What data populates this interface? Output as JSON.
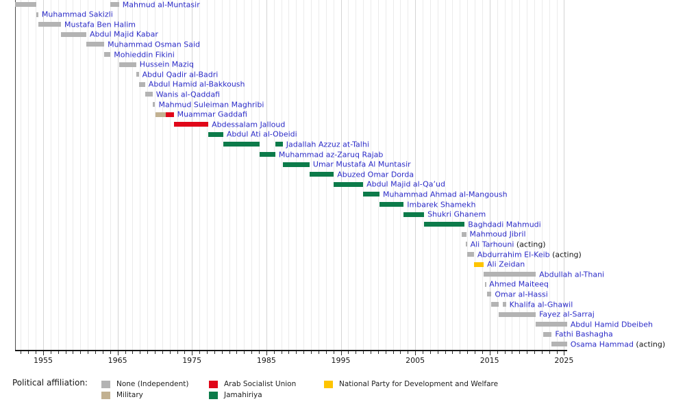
{
  "chart_data": {
    "type": "timeline",
    "description": "Timeline of prime ministers of Libya by political affiliation",
    "axis": {
      "start": 1951.2,
      "end": 2025.4,
      "tick_interval_years": 1,
      "labeled_ticks": [
        1955,
        1965,
        1975,
        1985,
        1995,
        2005,
        2015,
        2025
      ],
      "tick_labels": [
        "1955",
        "1965",
        "1975",
        "1985",
        "1995",
        "2005",
        "2015",
        "2025"
      ]
    },
    "affiliation_colors": {
      "none": "#b3b3b3",
      "military": "#c2b191",
      "arab_socialist_union": "#e00619",
      "jamahiriya": "#0c7b4a",
      "npdw": "#fec400"
    },
    "styles": {
      "link_color": "#2b2bc8",
      "text_color": "#141414",
      "grid_minor": "#ebebeb",
      "grid_major": "#d4d4d4",
      "axis_color": "#151515",
      "left_border_color": "#4a4a4a"
    },
    "people": [
      {
        "name": "Mahmud al-Muntasir",
        "suffix": "",
        "terms": [
          {
            "start": 1951.2,
            "end": 1954.1,
            "affiliation": "none"
          },
          {
            "start": 1964.05,
            "end": 1965.2,
            "affiliation": "none"
          }
        ]
      },
      {
        "name": "Muhammad Sakizli",
        "suffix": "",
        "terms": [
          {
            "start": 1954.1,
            "end": 1954.35,
            "affiliation": "none"
          }
        ]
      },
      {
        "name": "Mustafa Ben Halim",
        "suffix": "",
        "terms": [
          {
            "start": 1954.35,
            "end": 1957.4,
            "affiliation": "none"
          }
        ]
      },
      {
        "name": "Abdul Majid Kabar",
        "suffix": "",
        "terms": [
          {
            "start": 1957.4,
            "end": 1960.8,
            "affiliation": "none"
          }
        ]
      },
      {
        "name": "Muhammad Osman Said",
        "suffix": "",
        "terms": [
          {
            "start": 1960.8,
            "end": 1963.2,
            "affiliation": "none"
          }
        ]
      },
      {
        "name": "Mohieddin Fikini",
        "suffix": "",
        "terms": [
          {
            "start": 1963.2,
            "end": 1964.05,
            "affiliation": "none"
          }
        ]
      },
      {
        "name": "Hussein Maziq",
        "suffix": "",
        "terms": [
          {
            "start": 1965.2,
            "end": 1967.5,
            "affiliation": "none"
          }
        ]
      },
      {
        "name": "Abdul Qadir al-Badri",
        "suffix": "",
        "terms": [
          {
            "start": 1967.5,
            "end": 1967.85,
            "affiliation": "none"
          }
        ]
      },
      {
        "name": "Abdul Hamid al-Bakkoush",
        "suffix": "",
        "terms": [
          {
            "start": 1967.85,
            "end": 1968.7,
            "affiliation": "none"
          }
        ]
      },
      {
        "name": "Wanis al-Qaddafi",
        "suffix": "",
        "terms": [
          {
            "start": 1968.7,
            "end": 1969.7,
            "affiliation": "none"
          }
        ]
      },
      {
        "name": "Mahmud Suleiman Maghribi",
        "suffix": "",
        "terms": [
          {
            "start": 1969.7,
            "end": 1970.05,
            "affiliation": "none"
          }
        ]
      },
      {
        "name": "Muammar Gaddafi",
        "suffix": "",
        "terms": [
          {
            "start": 1970.05,
            "end": 1971.45,
            "affiliation": "military"
          },
          {
            "start": 1971.45,
            "end": 1972.55,
            "affiliation": "arab_socialist_union"
          }
        ]
      },
      {
        "name": "Abdessalam Jalloud",
        "suffix": "",
        "terms": [
          {
            "start": 1972.55,
            "end": 1977.2,
            "affiliation": "arab_socialist_union"
          }
        ]
      },
      {
        "name": "Abdul Ati al-Obeidi",
        "suffix": "",
        "terms": [
          {
            "start": 1977.2,
            "end": 1979.2,
            "affiliation": "jamahiriya"
          }
        ]
      },
      {
        "name": "Jadallah Azzuz at-Talhi",
        "suffix": "",
        "terms": [
          {
            "start": 1979.2,
            "end": 1984.1,
            "affiliation": "jamahiriya"
          },
          {
            "start": 1986.2,
            "end": 1987.2,
            "affiliation": "jamahiriya"
          }
        ]
      },
      {
        "name": "Muhammad az-Zaruq Rajab",
        "suffix": "",
        "terms": [
          {
            "start": 1984.1,
            "end": 1986.2,
            "affiliation": "jamahiriya"
          }
        ]
      },
      {
        "name": "Umar Mustafa Al Muntasir",
        "suffix": "",
        "terms": [
          {
            "start": 1987.2,
            "end": 1990.8,
            "affiliation": "jamahiriya"
          }
        ]
      },
      {
        "name": "Abuzed Omar Dorda",
        "suffix": "",
        "terms": [
          {
            "start": 1990.8,
            "end": 1994.05,
            "affiliation": "jamahiriya"
          }
        ]
      },
      {
        "name": "Abdul Majid al-Qaʼud",
        "suffix": "",
        "terms": [
          {
            "start": 1994.05,
            "end": 1998.0,
            "affiliation": "jamahiriya"
          }
        ]
      },
      {
        "name": "Muhammad Ahmad al-Mangoush",
        "suffix": "",
        "terms": [
          {
            "start": 1998.0,
            "end": 2000.2,
            "affiliation": "jamahiriya"
          }
        ]
      },
      {
        "name": "Imbarek Shamekh",
        "suffix": "",
        "terms": [
          {
            "start": 2000.2,
            "end": 2003.45,
            "affiliation": "jamahiriya"
          }
        ]
      },
      {
        "name": "Shukri Ghanem",
        "suffix": "",
        "terms": [
          {
            "start": 2003.45,
            "end": 2006.2,
            "affiliation": "jamahiriya"
          }
        ]
      },
      {
        "name": "Baghdadi Mahmudi",
        "suffix": "",
        "terms": [
          {
            "start": 2006.2,
            "end": 2011.65,
            "affiliation": "jamahiriya"
          }
        ]
      },
      {
        "name": "Mahmoud Jibril",
        "suffix": "",
        "terms": [
          {
            "start": 2011.2,
            "end": 2011.85,
            "affiliation": "none"
          }
        ]
      },
      {
        "name": "Ali Tarhouni",
        "suffix": " (acting)",
        "terms": [
          {
            "start": 2011.8,
            "end": 2011.95,
            "affiliation": "none"
          }
        ]
      },
      {
        "name": "Abdurrahim El-Keib",
        "suffix": " (acting)",
        "terms": [
          {
            "start": 2011.95,
            "end": 2012.9,
            "affiliation": "none"
          }
        ]
      },
      {
        "name": "Ali Zeidan",
        "suffix": "",
        "terms": [
          {
            "start": 2012.9,
            "end": 2014.2,
            "affiliation": "npdw"
          }
        ]
      },
      {
        "name": "Abdullah al-Thani",
        "suffix": "",
        "terms": [
          {
            "start": 2014.2,
            "end": 2021.2,
            "affiliation": "none"
          }
        ]
      },
      {
        "name": "Ahmed Maiteeq",
        "suffix": "",
        "terms": [
          {
            "start": 2014.35,
            "end": 2014.5,
            "affiliation": "none"
          }
        ]
      },
      {
        "name": "Omar al-Hassi",
        "suffix": "",
        "terms": [
          {
            "start": 2014.65,
            "end": 2015.25,
            "affiliation": "none"
          }
        ]
      },
      {
        "name": "Khalifa al-Ghawil",
        "suffix": "",
        "terms": [
          {
            "start": 2015.25,
            "end": 2016.25,
            "affiliation": "none"
          },
          {
            "start": 2016.8,
            "end": 2017.2,
            "affiliation": "none"
          }
        ]
      },
      {
        "name": "Fayez al-Sarraj",
        "suffix": "",
        "terms": [
          {
            "start": 2016.25,
            "end": 2021.2,
            "affiliation": "none"
          }
        ]
      },
      {
        "name": "Abdul Hamid Dbeibeh",
        "suffix": "",
        "terms": [
          {
            "start": 2021.2,
            "end": 2025.4,
            "affiliation": "none"
          }
        ]
      },
      {
        "name": "Fathi Bashagha",
        "suffix": "",
        "terms": [
          {
            "start": 2022.2,
            "end": 2023.35,
            "affiliation": "none"
          }
        ]
      },
      {
        "name": "Osama Hammad",
        "suffix": " (acting)",
        "terms": [
          {
            "start": 2023.35,
            "end": 2025.4,
            "affiliation": "none"
          }
        ]
      }
    ],
    "legend": {
      "title": "Political affiliation:",
      "items": [
        {
          "label": "None (Independent)",
          "affiliation": "none"
        },
        {
          "label": "Military",
          "affiliation": "military"
        },
        {
          "label": "Arab Socialist Union",
          "affiliation": "arab_socialist_union"
        },
        {
          "label": "Jamahiriya",
          "affiliation": "jamahiriya"
        },
        {
          "label": "National Party for Development and Welfare",
          "affiliation": "npdw"
        }
      ]
    }
  }
}
